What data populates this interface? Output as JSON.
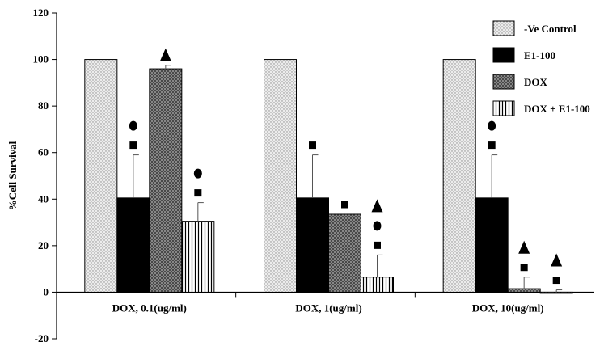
{
  "chart_data": {
    "type": "bar",
    "title": "",
    "xlabel": "",
    "ylabel": "%Cell Survival",
    "ylim": [
      -20,
      120
    ],
    "yticks": [
      -20,
      0,
      20,
      40,
      60,
      80,
      100,
      120
    ],
    "grid": false,
    "legend_position": "top-right",
    "categories": [
      "DOX, 0.1(ug/ml)",
      "DOX, 1(ug/ml)",
      "DOX, 10(ug/ml)"
    ],
    "series": [
      {
        "name": "-Ve Control",
        "values": [
          100,
          100,
          100
        ],
        "errors": [
          0,
          0,
          0
        ],
        "pattern": "dots"
      },
      {
        "name": "E1-100",
        "values": [
          40.5,
          40.5,
          40.5
        ],
        "errors": [
          18.5,
          18.5,
          18.5
        ],
        "pattern": "solid"
      },
      {
        "name": "DOX",
        "values": [
          96,
          33.5,
          1.5
        ],
        "errors": [
          1.5,
          0,
          5
        ],
        "pattern": "crosshatch"
      },
      {
        "name": "DOX + E1-100",
        "values": [
          30.5,
          6.5,
          -0.5
        ],
        "errors": [
          8,
          9.5,
          1
        ],
        "pattern": "vertical"
      }
    ],
    "annotations": [
      {
        "category": 0,
        "series": 1,
        "markers": [
          "circle",
          "square"
        ]
      },
      {
        "category": 0,
        "series": 2,
        "markers": [
          "triangle"
        ]
      },
      {
        "category": 0,
        "series": 3,
        "markers": [
          "circle",
          "square"
        ]
      },
      {
        "category": 1,
        "series": 1,
        "markers": [
          "square"
        ]
      },
      {
        "category": 1,
        "series": 2,
        "markers": [
          "square"
        ]
      },
      {
        "category": 1,
        "series": 3,
        "markers": [
          "triangle",
          "circle",
          "square"
        ]
      },
      {
        "category": 2,
        "series": 1,
        "markers": [
          "circle",
          "square"
        ]
      },
      {
        "category": 2,
        "series": 2,
        "markers": [
          "triangle",
          "square"
        ]
      },
      {
        "category": 2,
        "series": 3,
        "markers": [
          "triangle",
          "square"
        ]
      }
    ]
  }
}
